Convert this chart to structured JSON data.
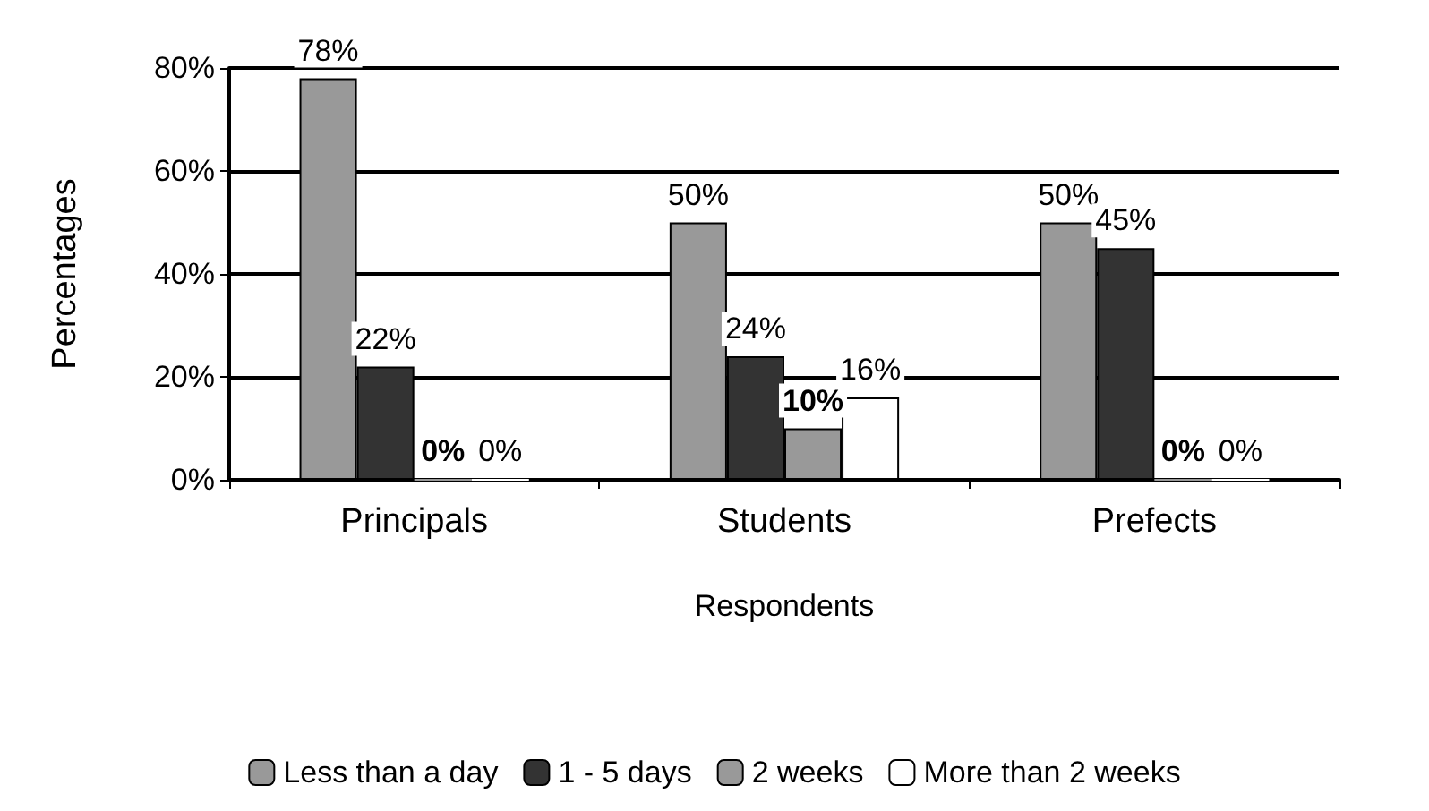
{
  "chart_data": {
    "type": "bar",
    "xlabel": "Respondents",
    "ylabel": "Percentages",
    "categories": [
      "Principals",
      "Students",
      "Prefects"
    ],
    "series": [
      {
        "name": "Less than a day",
        "color": "#999999",
        "values": [
          78,
          50,
          50
        ],
        "value_labels": [
          "78%",
          "50%",
          "50%"
        ]
      },
      {
        "name": "1 - 5 days",
        "color": "#333333",
        "values": [
          22,
          24,
          45
        ],
        "value_labels": [
          "22%",
          "24%",
          "45%"
        ]
      },
      {
        "name": "2 weeks",
        "color": "#999999",
        "values": [
          0,
          10,
          0
        ],
        "value_labels": [
          "0%",
          "10%",
          "0%"
        ]
      },
      {
        "name": "More than 2 weeks",
        "color": "#ffffff",
        "values": [
          0,
          16,
          0
        ],
        "value_labels": [
          "0%",
          "16%",
          "0%"
        ]
      }
    ],
    "ylim": [
      0,
      80
    ],
    "yticks": [
      {
        "value": 0,
        "label": "0%"
      },
      {
        "value": 20,
        "label": "20%"
      },
      {
        "value": 40,
        "label": "40%"
      },
      {
        "value": 60,
        "label": "60%"
      },
      {
        "value": 80,
        "label": "80%"
      }
    ],
    "grid": "y",
    "legend": "bottom"
  }
}
